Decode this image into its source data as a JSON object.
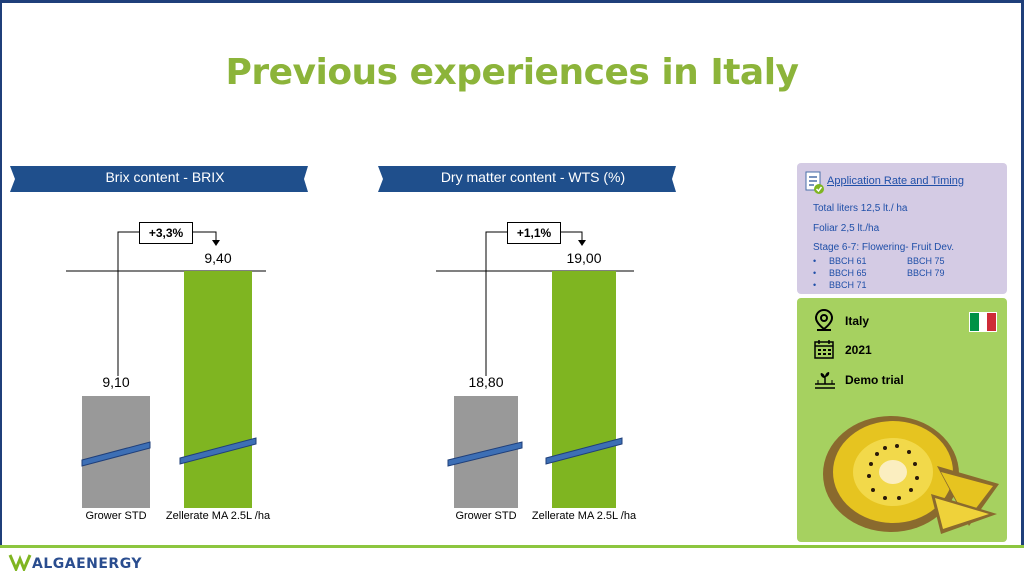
{
  "page": {
    "title": "Previous experiences in Italy",
    "colors": {
      "title": "#8cb43a",
      "banner": "#1f4f8c",
      "grower_bar": "#999999",
      "treated_bar": "#7fb521"
    }
  },
  "chart_data": [
    {
      "type": "bar",
      "title": "Brix content - BRIX",
      "categories": [
        "Grower STD",
        "Zellerate MA 2.5L /ha"
      ],
      "values": [
        9.1,
        9.4
      ],
      "value_labels": [
        "9,10",
        "9,40"
      ],
      "delta_label": "+3,3%",
      "broken_axis": true
    },
    {
      "type": "bar",
      "title": "Dry matter content - WTS (%)",
      "categories": [
        "Grower STD",
        "Zellerate MA 2.5L /ha"
      ],
      "values": [
        18.8,
        19.0
      ],
      "value_labels": [
        "18,80",
        "19,00"
      ],
      "delta_label": "+1,1%",
      "broken_axis": true
    }
  ],
  "info": {
    "link": "Application Rate and Timing",
    "total": "Total liters 12,5 lt./ ha",
    "foliar": "Foliar 2,5 lt./ha",
    "stage": "Stage 6-7: Flowering- Fruit Dev.",
    "bbch_col1": [
      "BBCH 61",
      "BBCH 65",
      "BBCH 71"
    ],
    "bbch_col2": [
      "BBCH 75",
      "BBCH 79"
    ]
  },
  "meta": {
    "country": "Italy",
    "year": "2021",
    "trial_type": "Demo trial"
  },
  "brand": {
    "name": "ALGAENERGY"
  }
}
